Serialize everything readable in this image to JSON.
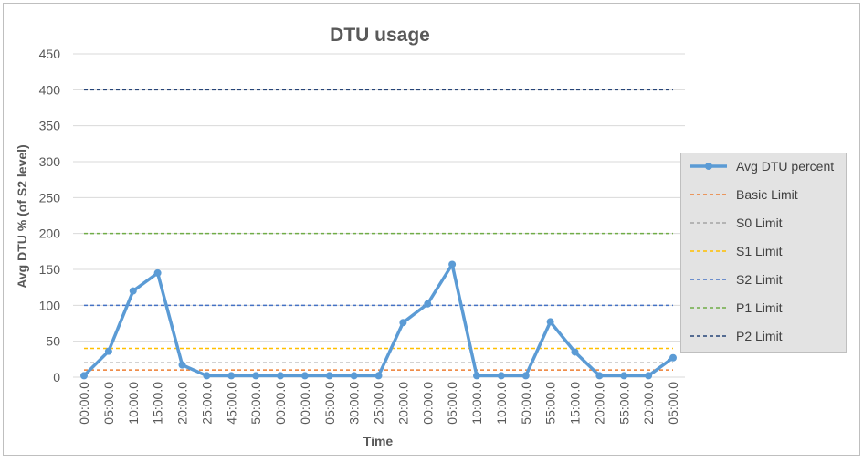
{
  "chart_data": {
    "type": "line",
    "title": "DTU usage",
    "xlabel": "Time",
    "ylabel": "Avg DTU % (of S2 level)",
    "ylim": [
      0,
      450
    ],
    "yticks": [
      0,
      50,
      100,
      150,
      200,
      250,
      300,
      350,
      400,
      450
    ],
    "grid": true,
    "legend_position": "right",
    "categories": [
      "00:00.0",
      "05:00.0",
      "10:00.0",
      "15:00.0",
      "20:00.0",
      "25:00.0",
      "45:00.0",
      "50:00.0",
      "00:00.0",
      "00:00.0",
      "05:00.0",
      "30:00.0",
      "25:00.0",
      "20:00.0",
      "00:00.0",
      "05:00.0",
      "10:00.0",
      "10:00.0",
      "50:00.0",
      "55:00.0",
      "15:00.0",
      "20:00.0",
      "55:00.0",
      "20:00.0",
      "05:00.0"
    ],
    "series": [
      {
        "name": "Avg DTU percent",
        "kind": "line",
        "color": "#5b9bd5",
        "values": [
          2,
          36,
          120,
          145,
          17,
          2,
          2,
          2,
          2,
          2,
          2,
          2,
          2,
          76,
          102,
          157,
          2,
          2,
          2,
          77,
          35,
          2,
          2,
          2,
          27
        ]
      },
      {
        "name": "Basic Limit",
        "kind": "limit",
        "color": "#ed7d31",
        "value": 10
      },
      {
        "name": "S0 Limit",
        "kind": "limit",
        "color": "#a5a5a5",
        "value": 20
      },
      {
        "name": "S1 Limit",
        "kind": "limit",
        "color": "#ffc000",
        "value": 40
      },
      {
        "name": "S2 Limit",
        "kind": "limit",
        "color": "#4472c4",
        "value": 100
      },
      {
        "name": "P1 Limit",
        "kind": "limit",
        "color": "#70ad47",
        "value": 200
      },
      {
        "name": "P2 Limit",
        "kind": "limit",
        "color": "#264478",
        "value": 400
      }
    ]
  }
}
